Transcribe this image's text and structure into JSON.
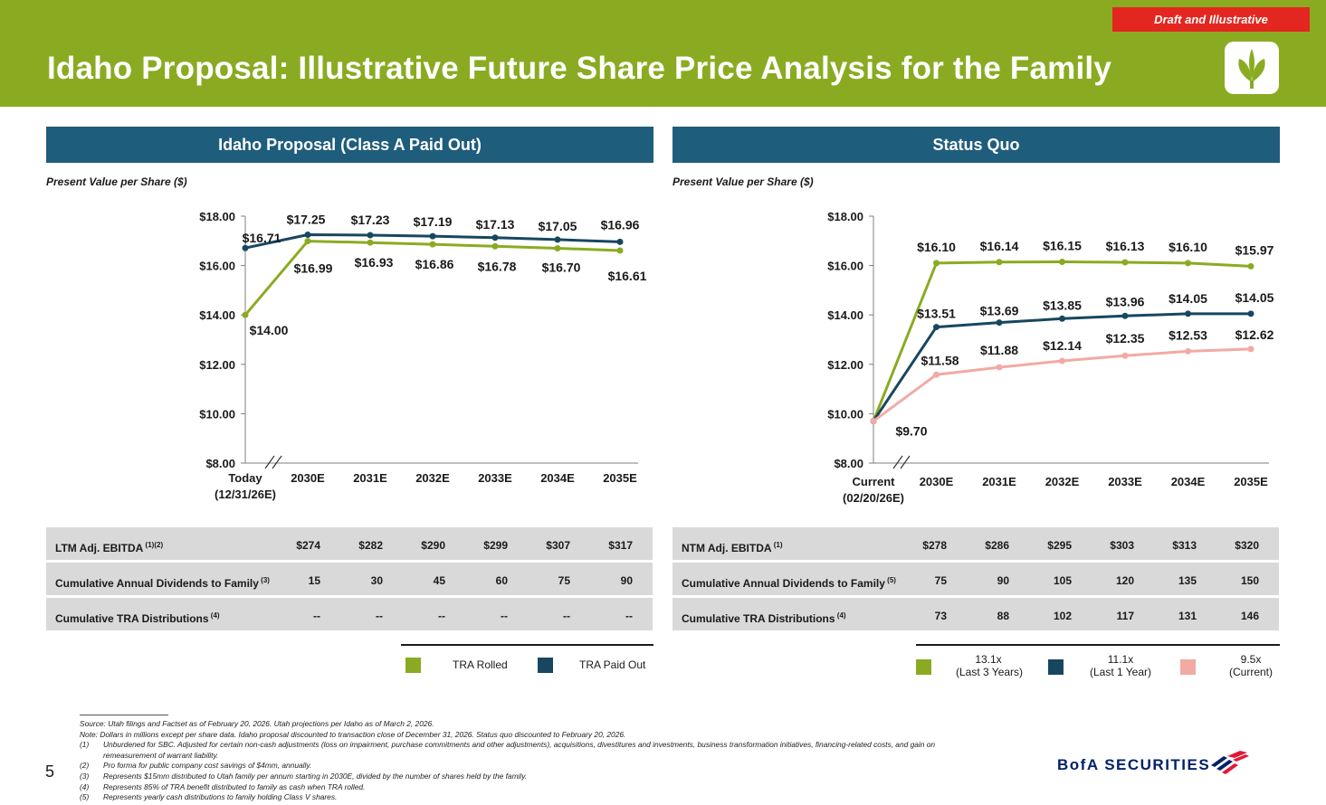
{
  "header": {
    "draft_badge": "Draft and Illustrative",
    "title": "Idaho Proposal: Illustrative Future Share Price Analysis for the Family"
  },
  "left": {
    "section_title": "Idaho Proposal (Class A Paid Out)",
    "pv_label": "Present Value per Share ($)",
    "rows": [
      {
        "label": "LTM Adj. EBITDA",
        "sup": "(1)(2)",
        "values": [
          "$274",
          "$282",
          "$290",
          "$299",
          "$307",
          "$317"
        ]
      },
      {
        "label": "Cumulative Annual Dividends to Family",
        "sup": "(3)",
        "values": [
          "15",
          "30",
          "45",
          "60",
          "75",
          "90"
        ]
      },
      {
        "label": "Cumulative TRA Distributions",
        "sup": "(4)",
        "values": [
          "--",
          "--",
          "--",
          "--",
          "--",
          "--"
        ]
      }
    ],
    "legend": [
      {
        "label": "TRA Rolled",
        "color": "#8aab21"
      },
      {
        "label": "TRA Paid Out",
        "color": "#17475f"
      }
    ]
  },
  "right": {
    "section_title": "Status Quo",
    "pv_label": "Present Value per Share ($)",
    "rows": [
      {
        "label": "NTM Adj. EBITDA",
        "sup": "(1)",
        "values": [
          "$278",
          "$286",
          "$295",
          "$303",
          "$313",
          "$320"
        ]
      },
      {
        "label": "Cumulative Annual Dividends to Family",
        "sup": "(5)",
        "values": [
          "75",
          "90",
          "105",
          "120",
          "135",
          "150"
        ]
      },
      {
        "label": "Cumulative TRA Distributions",
        "sup": "(4)",
        "values": [
          "73",
          "88",
          "102",
          "117",
          "131",
          "146"
        ]
      }
    ],
    "legend": [
      {
        "label": "13.1x",
        "sub": "(Last 3 Years)",
        "color": "#8aab21"
      },
      {
        "label": "11.1x",
        "sub": "(Last 1 Year)",
        "color": "#17475f"
      },
      {
        "label": "9.5x",
        "sub": "(Current)",
        "color": "#f2aaa4"
      }
    ]
  },
  "chart_data": [
    {
      "type": "line",
      "categories": [
        "Today\n(12/31/26E)",
        "2030E",
        "2031E",
        "2032E",
        "2033E",
        "2034E",
        "2035E"
      ],
      "ylim": [
        8,
        18
      ],
      "yticks": [
        "$8.00",
        "$10.00",
        "$12.00",
        "$14.00",
        "$16.00",
        "$18.00"
      ],
      "series": [
        {
          "name": "TRA Paid Out",
          "color": "#17475f",
          "values": [
            16.71,
            17.25,
            17.23,
            17.19,
            17.13,
            17.05,
            16.96
          ],
          "labels": [
            "$16.71",
            "$17.25",
            "$17.23",
            "$17.19",
            "$17.13",
            "$17.05",
            "$16.96"
          ]
        },
        {
          "name": "TRA Rolled",
          "color": "#8aab21",
          "values": [
            14.0,
            16.99,
            16.93,
            16.86,
            16.78,
            16.7,
            16.61
          ],
          "labels": [
            "$14.00",
            "$16.99",
            "$16.93",
            "$16.86",
            "$16.78",
            "$16.70",
            "$16.61"
          ]
        }
      ]
    },
    {
      "type": "line",
      "categories": [
        "Current\n(02/20/26E)",
        "2030E",
        "2031E",
        "2032E",
        "2033E",
        "2034E",
        "2035E"
      ],
      "ylim": [
        8,
        18
      ],
      "yticks": [
        "$8.00",
        "$10.00",
        "$12.00",
        "$14.00",
        "$16.00",
        "$18.00"
      ],
      "series": [
        {
          "name": "13.1x",
          "color": "#8aab21",
          "values": [
            9.7,
            16.1,
            16.14,
            16.15,
            16.13,
            16.1,
            15.97
          ],
          "labels": [
            "",
            "$16.10",
            "$16.14",
            "$16.15",
            "$16.13",
            "$16.10",
            "$15.97"
          ]
        },
        {
          "name": "11.1x",
          "color": "#17475f",
          "values": [
            9.7,
            13.51,
            13.69,
            13.85,
            13.96,
            14.05,
            14.05
          ],
          "labels": [
            "",
            "$13.51",
            "$13.69",
            "$13.85",
            "$13.96",
            "$14.05",
            "$14.05"
          ]
        },
        {
          "name": "9.5x",
          "color": "#f2aaa4",
          "values": [
            9.7,
            11.58,
            11.88,
            12.14,
            12.35,
            12.53,
            12.62
          ],
          "labels": [
            "$9.70",
            "$11.58",
            "$11.88",
            "$12.14",
            "$12.35",
            "$12.53",
            "$12.62"
          ]
        }
      ]
    }
  ],
  "footnotes": [
    {
      "n": "",
      "text": "Source: Utah filings and Factset as of February 20, 2026. Utah projections per Idaho as of March 2, 2026."
    },
    {
      "n": "",
      "text": "Note: Dollars in millions except per share data. Idaho proposal discounted to transaction close of December 31, 2026. Status quo discounted to February 20, 2026."
    },
    {
      "n": "(1)",
      "text": "Unburdened for SBC. Adjusted for certain non-cash adjustments (loss on impairment, purchase commitments and other adjustments), acquisitions, divestitures and investments, business transformation initiatives, financing-related costs, and gain on"
    },
    {
      "n": "",
      "text": "remeasurement of warrant liability."
    },
    {
      "n": "(2)",
      "text": "Pro forma for public company cost savings of $4mm, annually."
    },
    {
      "n": "(3)",
      "text": "Represents $15mm distributed to Utah family per annum starting in 2030E, divided by the number of shares held by the family."
    },
    {
      "n": "(4)",
      "text": "Represents 85% of TRA benefit distributed to family as cash when TRA rolled."
    },
    {
      "n": "(5)",
      "text": "Represents yearly cash distributions to family holding Class V shares."
    }
  ],
  "page_number": "5",
  "brand": "BofA SECURITIES"
}
